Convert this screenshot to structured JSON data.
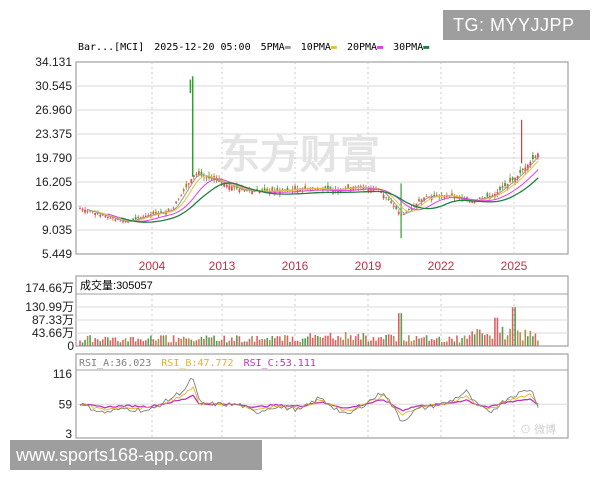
{
  "watermarks": {
    "top_right": "TG: MYYJJPP",
    "bottom_left": "www.sports168-app.com",
    "center_logo": "东方财富",
    "weibo": "微博"
  },
  "main_panel": {
    "header": {
      "symbol": "Bar...[MCI]",
      "datetime": "2025-12-20 05:00",
      "ma_legend": [
        {
          "label": "5PMA",
          "color": "#9a9a9a"
        },
        {
          "label": "10PMA",
          "color": "#e8c040"
        },
        {
          "label": "20PMA",
          "color": "#e040e0"
        },
        {
          "label": "30PMA",
          "color": "#208040"
        }
      ]
    }
  },
  "volume_panel": {
    "label": "成交量",
    "value": "305057",
    "y_ticks": [
      "174.66万",
      "130.99万",
      "87.33万",
      "43.66万",
      "0"
    ]
  },
  "rsi_panel": {
    "legend": [
      {
        "label": "RSI_A",
        "value": "36.023",
        "color": "#808080"
      },
      {
        "label": "RSI_B",
        "value": "47.772",
        "color": "#e8b020"
      },
      {
        "label": "RSI_C",
        "value": "53.111",
        "color": "#c030c0"
      }
    ],
    "y_ticks": [
      "116",
      "59",
      "3"
    ]
  },
  "chart_data": [
    {
      "type": "candlestick",
      "title": "Bar...[MCI] 2025-12-20 05:00",
      "xlabel": "",
      "ylabel": "Price",
      "ylim": [
        5.449,
        34.131
      ],
      "y_ticks": [
        34.131,
        30.545,
        26.96,
        23.375,
        19.79,
        16.205,
        12.62,
        9.035,
        5.449
      ],
      "y_tick_labels": [
        "34.131",
        "30.545",
        "26.960",
        "23.375",
        "19.790",
        "16.205",
        "12.620",
        "9.035",
        "5.449"
      ],
      "x_tick_labels": [
        "2004",
        "2013",
        "2016",
        "2019",
        "2022",
        "2025"
      ],
      "grid": true,
      "legend": [
        "5PMA",
        "10PMA",
        "20PMA",
        "30PMA"
      ],
      "series": [
        {
          "name": "Close (approx)",
          "x": [
            0,
            5,
            10,
            15,
            20,
            25,
            30,
            35,
            40,
            45,
            50,
            55,
            60,
            65,
            70,
            75,
            80,
            85,
            90,
            95,
            100
          ],
          "values": [
            12.3,
            11.2,
            10.2,
            11.3,
            12.0,
            17.5,
            16.3,
            15.0,
            14.8,
            15.0,
            15.3,
            15.0,
            15.5,
            15.1,
            11.2,
            14.0,
            14.2,
            13.3,
            14.3,
            17.0,
            20.8
          ]
        },
        {
          "name": "30PMA",
          "x": [
            0,
            10,
            20,
            25,
            30,
            40,
            50,
            60,
            65,
            70,
            80,
            90,
            95,
            100
          ],
          "values": [
            11.5,
            10.7,
            11.3,
            13.5,
            15.5,
            15.2,
            15.3,
            15.3,
            14.8,
            14.0,
            13.6,
            14.2,
            16.5,
            19.5
          ]
        }
      ],
      "annotations": [
        "spike high ~32 around 2011",
        "dip low ~7.8 around 2020"
      ]
    },
    {
      "type": "bar",
      "title": "成交量:305057",
      "ylabel": "Volume",
      "ylim": [
        0,
        1746600
      ],
      "y_tick_labels": [
        "174.66万",
        "130.99万",
        "87.33万",
        "43.66万",
        "0"
      ],
      "grid": true,
      "values_note": "~190 bars, red/green, mostly 10-45万; peaks ~110万 near 2019-2020 and ~130万 near late 2024"
    },
    {
      "type": "line",
      "title": "RSI",
      "ylim": [
        3,
        116
      ],
      "y_tick_labels": [
        "116",
        "59",
        "3"
      ],
      "series": [
        {
          "name": "RSI_A",
          "last": 36.023
        },
        {
          "name": "RSI_B",
          "last": 47.772
        },
        {
          "name": "RSI_C",
          "last": 53.111
        }
      ],
      "grid": true
    }
  ]
}
